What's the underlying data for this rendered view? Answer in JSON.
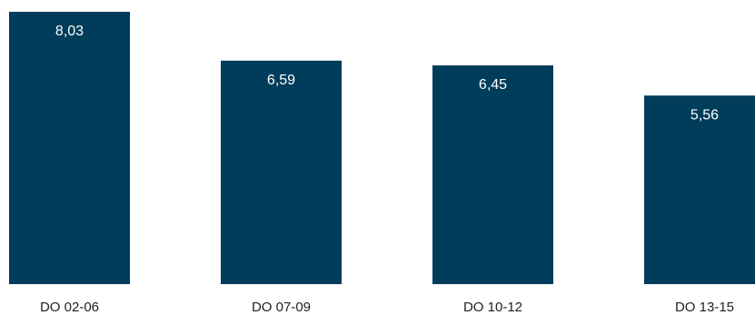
{
  "chart_data": {
    "type": "bar",
    "categories": [
      "DO 02-06",
      "DO 07-09",
      "DO 10-12",
      "DO 13-15"
    ],
    "values": [
      8.03,
      6.59,
      6.45,
      5.56
    ],
    "value_labels": [
      "8,03",
      "6,59",
      "6,45",
      "5,56"
    ],
    "ylim": [
      0,
      8.03
    ],
    "grid": false,
    "legend": "none",
    "bar_color": "#003d5b",
    "value_label_color": "#ffffff",
    "category_label_color": "#222222"
  }
}
